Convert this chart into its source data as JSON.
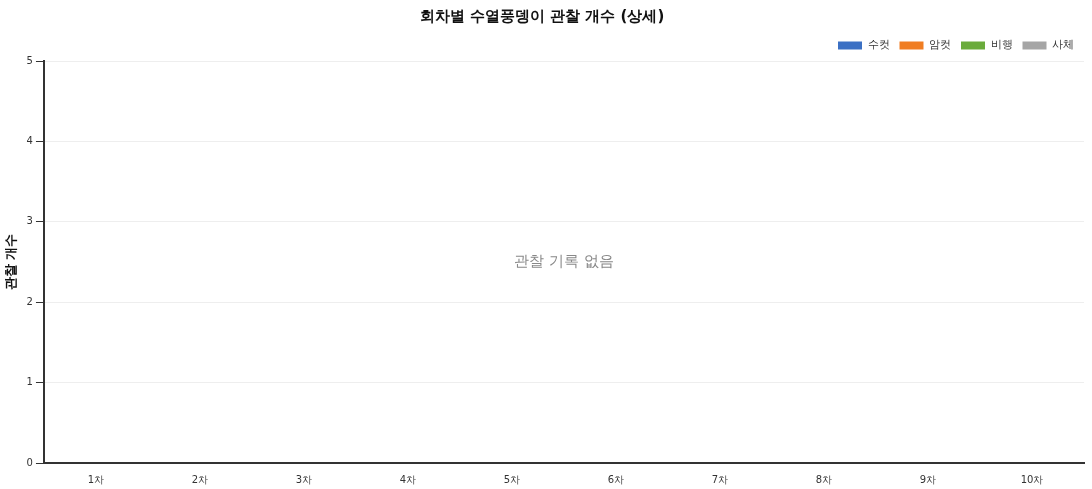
{
  "chart_data": {
    "type": "bar",
    "title": "회차별 수열풍뎅이 관찰 개수 (상세)",
    "ylabel": "관찰 개수",
    "categories": [
      "1차",
      "2차",
      "3차",
      "4차",
      "5차",
      "6차",
      "7차",
      "8차",
      "9차",
      "10차"
    ],
    "series": [
      {
        "name": "수컷",
        "color": "#3b70c4",
        "values": [
          0,
          0,
          0,
          0,
          0,
          0,
          0,
          0,
          0,
          0
        ]
      },
      {
        "name": "암컷",
        "color": "#f07d22",
        "values": [
          0,
          0,
          0,
          0,
          0,
          0,
          0,
          0,
          0,
          0
        ]
      },
      {
        "name": "비행",
        "color": "#6aab3b",
        "values": [
          0,
          0,
          0,
          0,
          0,
          0,
          0,
          0,
          0,
          0
        ]
      },
      {
        "name": "사체",
        "color": "#a5a5a5",
        "values": [
          0,
          0,
          0,
          0,
          0,
          0,
          0,
          0,
          0,
          0
        ]
      }
    ],
    "ylim": [
      0,
      5
    ],
    "yticks": [
      0,
      1,
      2,
      3,
      4,
      5
    ],
    "grid": "y",
    "legend": "top right",
    "annotations": [
      "관찰 기록 없음"
    ]
  }
}
